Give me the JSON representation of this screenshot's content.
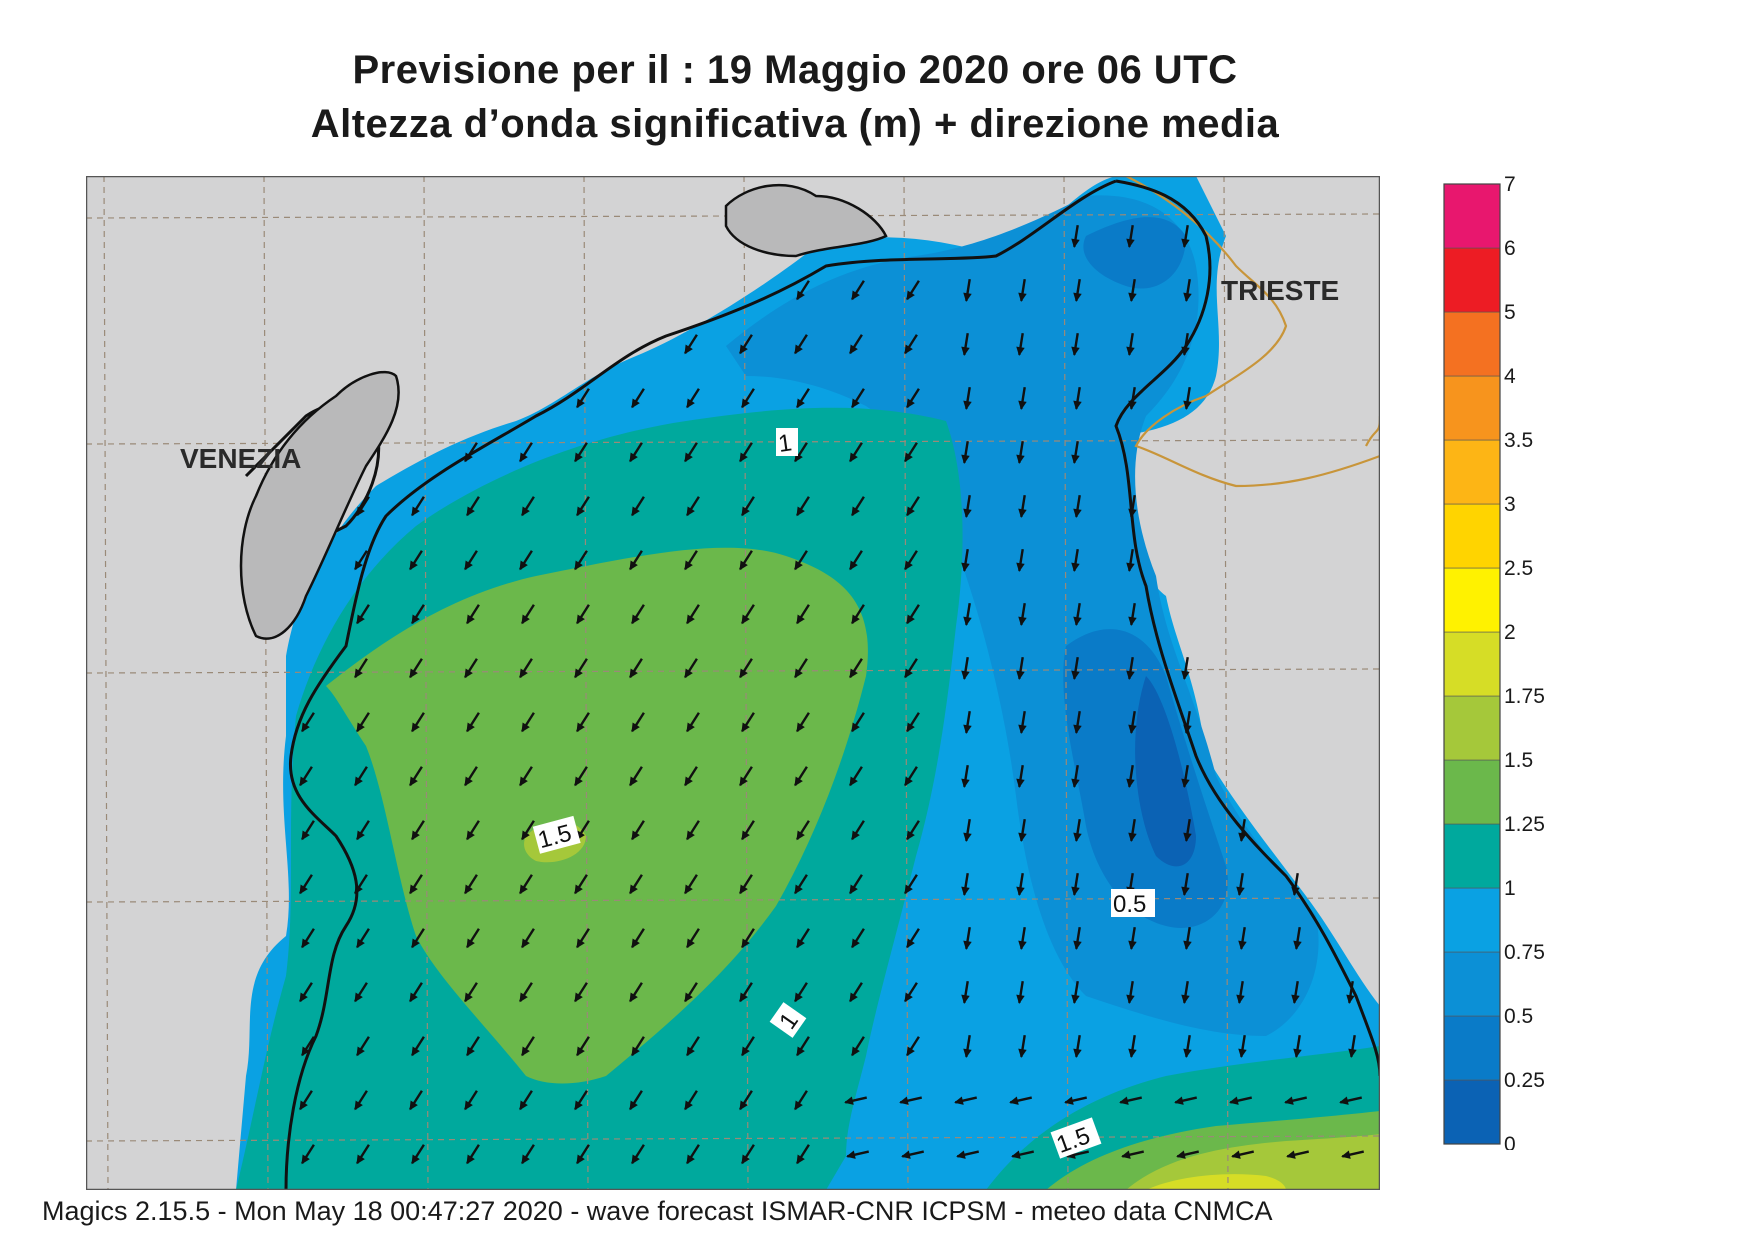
{
  "title": {
    "line1": "Previsione per il  :  19   Maggio  2020   ore 06 UTC",
    "line2": "Altezza d’onda significativa (m) + direzione media"
  },
  "map": {
    "cities": [
      {
        "name": "VENEZIA"
      },
      {
        "name": "TRIESTE"
      }
    ],
    "contour_labels": [
      "1",
      "1.5",
      "0.5",
      "1",
      "1.5"
    ],
    "arrow_direction": "SW"
  },
  "legend": {
    "levels": [
      "0",
      "0.25",
      "0.5",
      "0.75",
      "1",
      "1.25",
      "1.5",
      "1.75",
      "2",
      "2.5",
      "3",
      "3.5",
      "4",
      "5",
      "6",
      "7"
    ],
    "colors": [
      "#0b62b4",
      "#0a7bc8",
      "#0c90d6",
      "#0aa1e3",
      "#00a99d",
      "#6bb84b",
      "#a5c83a",
      "#d6dd26",
      "#fff200",
      "#ffd400",
      "#fdb515",
      "#f7941d",
      "#f47121",
      "#ed1c24",
      "#e8176e"
    ]
  },
  "footer": {
    "text": "Magics 2.15.5 - Mon May 18 00:47:27 2020 - wave forecast  ISMAR-CNR  ICPSM - meteo data   CNMCA"
  }
}
